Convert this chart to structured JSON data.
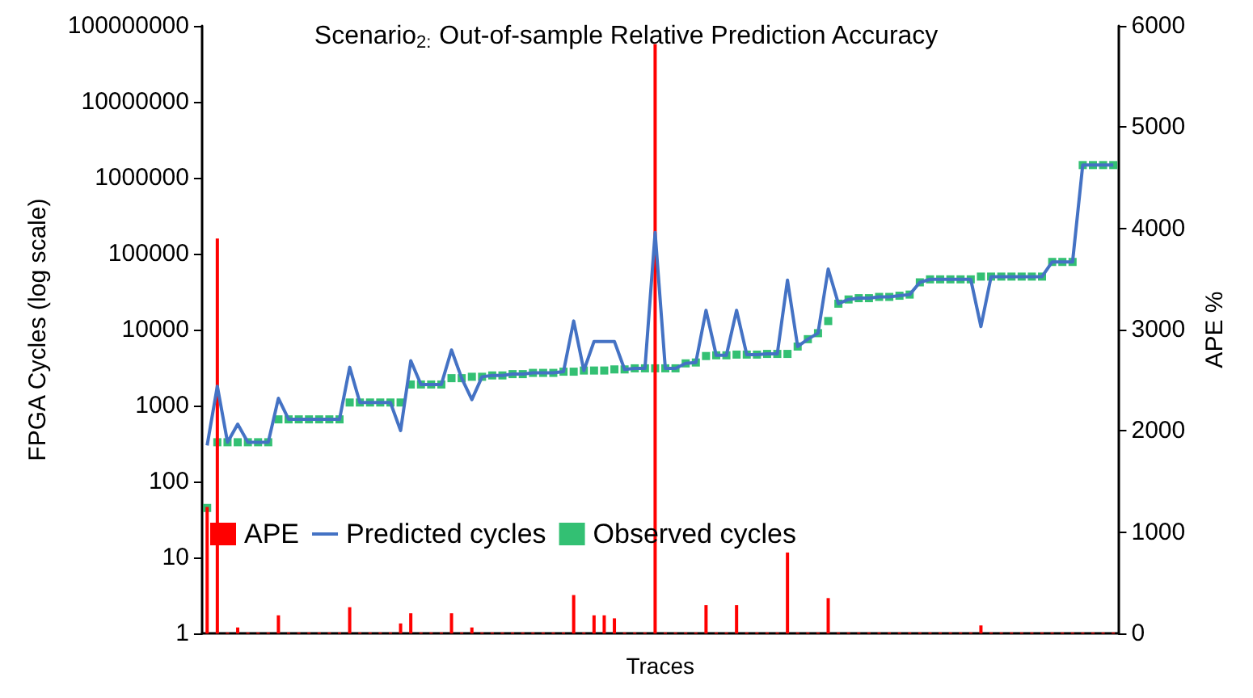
{
  "chart_data": {
    "type": "line",
    "title": "Scenario$_{2:}$ Out-of-sample Relative Prediction Accuracy",
    "xlabel": "Traces",
    "ylabel": "FPGA Cycles (log scale)",
    "y2label": "APE %",
    "categories": [
      null,
      null,
      null,
      null,
      null,
      null,
      null,
      null,
      null,
      null,
      null,
      null,
      null,
      null,
      null,
      null,
      null,
      null,
      null,
      null,
      null,
      null,
      null,
      null,
      null,
      null,
      null,
      null,
      null,
      null,
      null,
      null,
      null,
      null,
      null,
      null,
      null,
      null,
      null,
      null,
      null,
      null,
      null,
      null,
      null,
      null,
      null,
      null,
      null,
      null,
      null,
      null,
      null,
      null,
      null,
      null,
      null,
      null,
      null,
      null,
      null,
      null,
      null,
      null,
      null,
      null,
      null,
      null,
      null,
      null,
      null,
      null,
      null,
      null,
      null,
      null,
      null,
      null,
      null,
      null,
      null,
      null,
      null,
      null,
      null,
      null,
      null,
      null,
      null,
      null
    ],
    "log": "y",
    "ylim": [
      1,
      100000000
    ],
    "yticks": [
      1,
      10,
      100,
      1000,
      10000,
      100000,
      1000000,
      10000000,
      100000000
    ],
    "y2lim": [
      0,
      6000
    ],
    "y2ticks": [
      0,
      1000,
      2000,
      3000,
      4000,
      5000,
      6000
    ],
    "legend": "bottom left",
    "grid": false,
    "series": [
      {
        "name": "APE",
        "type": "bar",
        "axis": "y2",
        "color": "#ff0000",
        "values": [
          1250,
          3900,
          10,
          60,
          10,
          10,
          10,
          180,
          10,
          10,
          10,
          10,
          10,
          10,
          260,
          10,
          10,
          10,
          10,
          100,
          200,
          10,
          10,
          10,
          200,
          10,
          60,
          10,
          10,
          10,
          10,
          10,
          10,
          10,
          10,
          10,
          380,
          10,
          180,
          180,
          150,
          10,
          10,
          10,
          5820,
          10,
          10,
          10,
          10,
          280,
          10,
          10,
          280,
          10,
          10,
          10,
          10,
          800,
          10,
          10,
          10,
          350,
          10,
          10,
          10,
          10,
          10,
          10,
          10,
          10,
          10,
          10,
          10,
          10,
          10,
          10,
          80,
          10,
          10,
          10,
          10,
          10,
          10,
          10,
          10,
          10,
          10,
          10,
          10,
          10
        ]
      },
      {
        "name": "Predicted cycles",
        "marker": "none",
        "line_style": "solid",
        "color": "#4472c4",
        "values": [
          300,
          1800,
          330,
          570,
          330,
          330,
          330,
          1250,
          660,
          660,
          660,
          660,
          660,
          660,
          3200,
          1100,
          1100,
          1100,
          1100,
          470,
          3900,
          1900,
          1900,
          1900,
          5400,
          2300,
          1200,
          2400,
          2500,
          2500,
          2600,
          2600,
          2700,
          2700,
          2700,
          2800,
          13000,
          2900,
          7000,
          7000,
          7000,
          3000,
          3100,
          3100,
          190000,
          3100,
          3100,
          3600,
          3700,
          18000,
          4600,
          4600,
          18000,
          4700,
          4700,
          4800,
          4800,
          45000,
          6000,
          7500,
          9000,
          63000,
          22000,
          25000,
          26000,
          26000,
          27000,
          27000,
          28000,
          29000,
          42000,
          46000,
          46000,
          46000,
          46000,
          46000,
          11000,
          50000,
          50000,
          50000,
          50000,
          50000,
          50000,
          78000,
          78000,
          78000,
          1470000,
          1470000,
          1470000,
          1470000
        ]
      },
      {
        "name": "Observed cycles",
        "type": "scatter",
        "marker": "square",
        "color": "#00b050",
        "values": [
          45,
          330,
          330,
          330,
          330,
          330,
          330,
          660,
          660,
          660,
          660,
          660,
          660,
          660,
          1100,
          1100,
          1100,
          1100,
          1100,
          1100,
          1900,
          1900,
          1900,
          1900,
          2300,
          2300,
          2400,
          2400,
          2500,
          2500,
          2600,
          2600,
          2700,
          2700,
          2700,
          2800,
          2800,
          2900,
          2900,
          2900,
          3000,
          3000,
          3100,
          3100,
          3100,
          3100,
          3100,
          3600,
          3700,
          4500,
          4600,
          4600,
          4700,
          4700,
          4700,
          4800,
          4800,
          4800,
          6000,
          7500,
          9000,
          13000,
          22000,
          25000,
          26000,
          26000,
          27000,
          27000,
          28000,
          29000,
          42000,
          46000,
          46000,
          46000,
          46000,
          46000,
          50000,
          50000,
          50000,
          50000,
          50000,
          50000,
          50000,
          78000,
          78000,
          78000,
          1470000,
          1470000,
          1470000,
          1470000
        ]
      }
    ]
  }
}
